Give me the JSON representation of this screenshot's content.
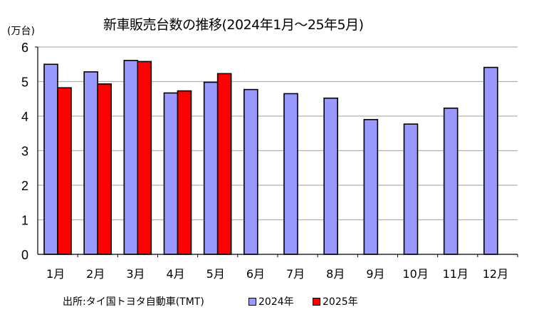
{
  "chart_data": {
    "type": "bar",
    "title": "新車販売台数の推移(2024年1月～25年5月)",
    "ylabel": "(万台)",
    "xlabel": "",
    "ylim": [
      0,
      6
    ],
    "yticks": [
      0,
      1,
      2,
      3,
      4,
      5,
      6
    ],
    "grid": true,
    "legend_position": "bottom",
    "categories": [
      "1月",
      "2月",
      "3月",
      "4月",
      "5月",
      "6月",
      "7月",
      "8月",
      "9月",
      "10月",
      "11月",
      "12月"
    ],
    "series": [
      {
        "name": "2024年",
        "color": "#9999ff",
        "values": [
          5.5,
          5.28,
          5.61,
          4.67,
          4.98,
          4.77,
          4.65,
          4.52,
          3.9,
          3.77,
          4.23,
          5.41
        ]
      },
      {
        "name": "2025年",
        "color": "#ff0000",
        "values": [
          4.82,
          4.93,
          5.58,
          4.73,
          5.23,
          null,
          null,
          null,
          null,
          null,
          null,
          null
        ]
      }
    ],
    "source": "出所:タイ国トヨタ自動車(TMT)"
  },
  "labels": {
    "title": "新車販売台数の推移(2024年1月～25年5月)",
    "unit": "(万台)",
    "source": "出所:タイ国トヨタ自動車(TMT)",
    "legend_2024": "2024年",
    "legend_2025": "2025年"
  }
}
